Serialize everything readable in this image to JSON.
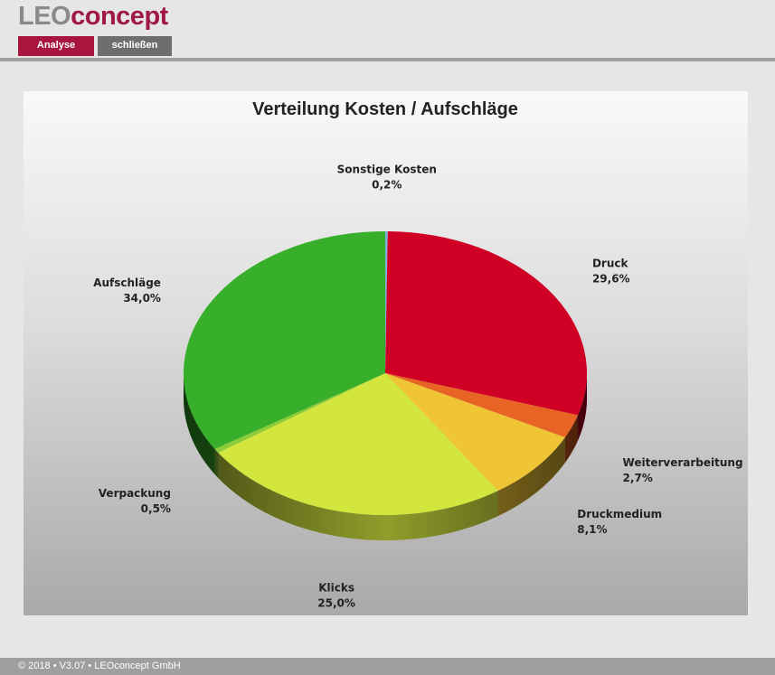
{
  "app": {
    "logo_part1": "LEO",
    "logo_part2": "concept",
    "brand_color": "#a8163f"
  },
  "nav": {
    "tabs": [
      {
        "label": "Analyse",
        "active": true
      },
      {
        "label": "schließen",
        "active": false
      }
    ]
  },
  "footer": {
    "text": "© 2018 • V3.07 • LEOconcept GmbH"
  },
  "chart_data": {
    "type": "pie",
    "title": "Verteilung Kosten / Aufschläge",
    "start_angle_deg": 0,
    "legend": "labels-outside",
    "slices": [
      {
        "label": "Sonstige Kosten",
        "value": 0.2,
        "pct_text": "0,2%",
        "color": "#7bb0d8"
      },
      {
        "label": "Druck",
        "value": 29.6,
        "pct_text": "29,6%",
        "color": "#d00025"
      },
      {
        "label": "Weiterverarbeitung",
        "value": 2.7,
        "pct_text": "2,7%",
        "color": "#e86424"
      },
      {
        "label": "Druckmedium",
        "value": 8.1,
        "pct_text": "8,1%",
        "color": "#f0c535"
      },
      {
        "label": "Klicks",
        "value": 25.0,
        "pct_text": "25,0%",
        "color": "#d3e63e"
      },
      {
        "label": "Verpackung",
        "value": 0.5,
        "pct_text": "0,5%",
        "color": "#8ccc38"
      },
      {
        "label": "Aufschläge",
        "value": 34.0,
        "pct_text": "34,0%",
        "color": "#37af2a"
      }
    ]
  }
}
